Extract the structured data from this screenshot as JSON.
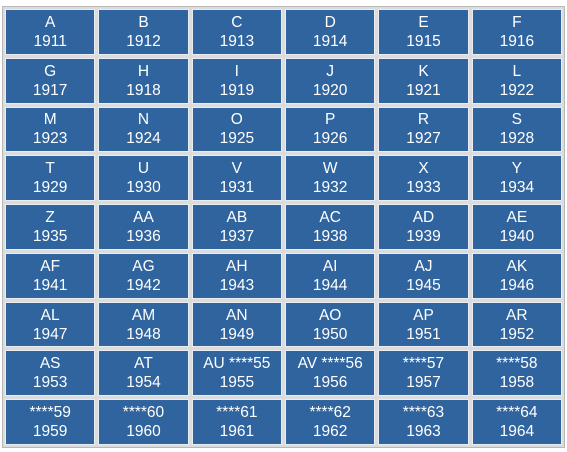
{
  "cells": [
    {
      "code": "A",
      "year": "1911"
    },
    {
      "code": "B",
      "year": "1912"
    },
    {
      "code": "C",
      "year": "1913"
    },
    {
      "code": "D",
      "year": "1914"
    },
    {
      "code": "E",
      "year": "1915"
    },
    {
      "code": "F",
      "year": "1916"
    },
    {
      "code": "G",
      "year": "1917"
    },
    {
      "code": "H",
      "year": "1918"
    },
    {
      "code": "I",
      "year": "1919"
    },
    {
      "code": "J",
      "year": "1920"
    },
    {
      "code": "K",
      "year": "1921"
    },
    {
      "code": "L",
      "year": "1922"
    },
    {
      "code": "M",
      "year": "1923"
    },
    {
      "code": "N",
      "year": "1924"
    },
    {
      "code": "O",
      "year": "1925"
    },
    {
      "code": "P",
      "year": "1926"
    },
    {
      "code": "R",
      "year": "1927"
    },
    {
      "code": "S",
      "year": "1928"
    },
    {
      "code": "T",
      "year": "1929"
    },
    {
      "code": "U",
      "year": "1930"
    },
    {
      "code": "V",
      "year": "1931"
    },
    {
      "code": "W",
      "year": "1932"
    },
    {
      "code": "X",
      "year": "1933"
    },
    {
      "code": "Y",
      "year": "1934"
    },
    {
      "code": "Z",
      "year": "1935"
    },
    {
      "code": "AA",
      "year": "1936"
    },
    {
      "code": "AB",
      "year": "1937"
    },
    {
      "code": "AC",
      "year": "1938"
    },
    {
      "code": "AD",
      "year": "1939"
    },
    {
      "code": "AE",
      "year": "1940"
    },
    {
      "code": "AF",
      "year": "1941"
    },
    {
      "code": "AG",
      "year": "1942"
    },
    {
      "code": "AH",
      "year": "1943"
    },
    {
      "code": "AI",
      "year": "1944"
    },
    {
      "code": "AJ",
      "year": "1945"
    },
    {
      "code": "AK",
      "year": "1946"
    },
    {
      "code": "AL",
      "year": "1947"
    },
    {
      "code": "AM",
      "year": "1948"
    },
    {
      "code": "AN",
      "year": "1949"
    },
    {
      "code": "AO",
      "year": "1950"
    },
    {
      "code": "AP",
      "year": "1951"
    },
    {
      "code": "AR",
      "year": "1952"
    },
    {
      "code": "AS",
      "year": "1953"
    },
    {
      "code": "AT",
      "year": "1954"
    },
    {
      "code": "AU ****55",
      "year": "1955"
    },
    {
      "code": "AV ****56",
      "year": "1956"
    },
    {
      "code": "****57",
      "year": "1957"
    },
    {
      "code": "****58",
      "year": "1958"
    },
    {
      "code": "****59",
      "year": "1959"
    },
    {
      "code": "****60",
      "year": "1960"
    },
    {
      "code": "****61",
      "year": "1961"
    },
    {
      "code": "****62",
      "year": "1962"
    },
    {
      "code": "****63",
      "year": "1963"
    },
    {
      "code": "****64",
      "year": "1964"
    }
  ],
  "colors": {
    "cell_background": "#2f649f",
    "cell_text": "#ffffff",
    "grid_background": "#dcdcdc"
  }
}
